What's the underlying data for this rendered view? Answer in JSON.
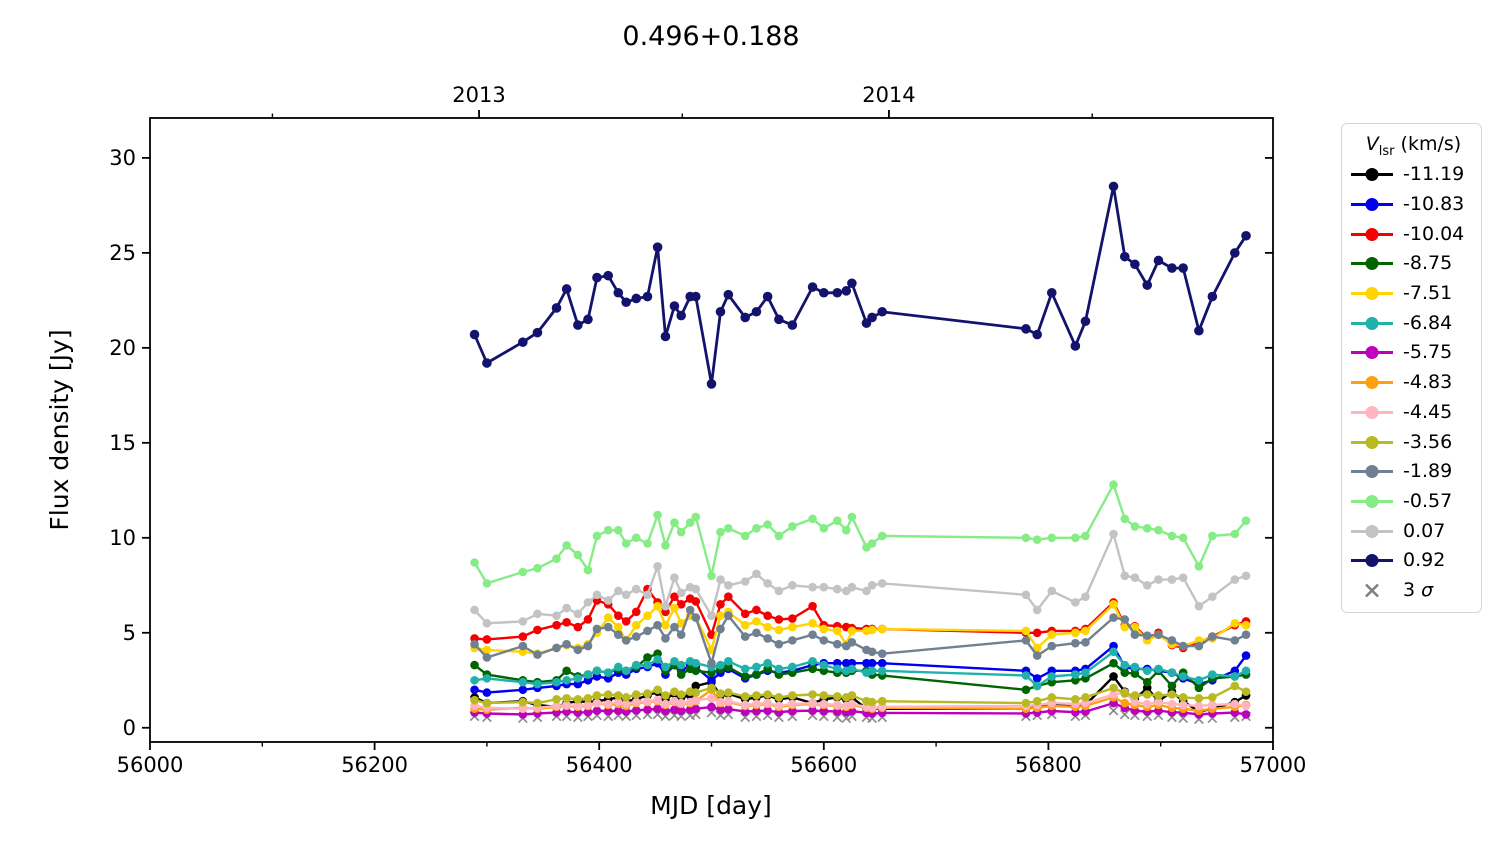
{
  "chart_data": {
    "type": "line",
    "title": "0.496+0.188",
    "xlabel": "MJD [day]",
    "ylabel": "Flux density [Jy]",
    "grid": false,
    "xlim": [
      56000,
      57000
    ],
    "ylim": [
      -0.75,
      32.1
    ],
    "x_major_ticks": [
      56000,
      56200,
      56400,
      56600,
      56800,
      57000
    ],
    "x_minor_ticks": [
      56100,
      56300,
      56500,
      56700,
      56900
    ],
    "y_major_ticks": [
      0,
      5,
      10,
      15,
      20,
      25,
      30
    ],
    "top_axis": {
      "major_ticks": [
        {
          "mjd": 56293,
          "label": "2013"
        },
        {
          "mjd": 56658,
          "label": "2014"
        }
      ],
      "minor_ticks": [
        56109,
        56474,
        56839
      ]
    },
    "legend": {
      "position": "outside-right-top",
      "title_variable": "V",
      "title_subscript": "lsr",
      "title_unit": "(km/s)",
      "sigma_prefix": "3 ",
      "sigma_symbol": "σ"
    },
    "x": [
      56289,
      56300,
      56332,
      56345,
      56362,
      56371,
      56381,
      56390,
      56398,
      56408,
      56417,
      56424,
      56433,
      56443,
      56452,
      56459,
      56467,
      56473,
      56481,
      56486,
      56500,
      56508,
      56515,
      56530,
      56540,
      56550,
      56560,
      56572,
      56590,
      56600,
      56612,
      56620,
      56625,
      56638,
      56643,
      56652,
      56780,
      56790,
      56803,
      56824,
      56833,
      56858,
      56868,
      56877,
      56888,
      56898,
      56910,
      56920,
      56934,
      56946,
      56966,
      56976
    ],
    "series": [
      {
        "name": "-11.19",
        "color": "#000000",
        "values": [
          1.6,
          1.3,
          1.4,
          1.2,
          1.1,
          1.3,
          1.4,
          1.35,
          1.4,
          1.5,
          1.6,
          1.4,
          1.5,
          1.7,
          1.9,
          1.5,
          1.8,
          1.6,
          1.7,
          2.2,
          2.4,
          1.7,
          1.8,
          1.5,
          1.6,
          1.7,
          1.5,
          1.6,
          1.3,
          1.5,
          1.6,
          1.5,
          1.6,
          1.0,
          1.0,
          1.0,
          1.0,
          1.1,
          1.3,
          1.1,
          1.2,
          2.7,
          1.9,
          1.5,
          2.1,
          1.4,
          1.9,
          1.4,
          0.85,
          1.0,
          1.35,
          1.7
        ]
      },
      {
        "name": "-10.83",
        "color": "#0000ee",
        "values": [
          2.0,
          1.85,
          2.0,
          2.1,
          2.2,
          2.3,
          2.3,
          2.5,
          2.7,
          2.6,
          2.9,
          2.8,
          3.1,
          3.2,
          3.4,
          2.8,
          3.3,
          3.0,
          3.3,
          3.2,
          2.5,
          2.9,
          3.1,
          2.6,
          2.8,
          3.0,
          2.9,
          3.0,
          3.3,
          3.4,
          3.4,
          3.4,
          3.4,
          3.4,
          3.4,
          3.4,
          3.0,
          2.6,
          3.0,
          3.0,
          3.1,
          4.3,
          3.2,
          3.1,
          3.1,
          3.0,
          2.9,
          2.6,
          2.3,
          2.5,
          3.0,
          3.8
        ]
      },
      {
        "name": "-10.04",
        "color": "#f40000",
        "values": [
          4.7,
          4.65,
          4.8,
          5.15,
          5.4,
          5.55,
          5.3,
          5.7,
          6.7,
          6.5,
          5.9,
          5.6,
          6.1,
          7.3,
          6.6,
          6.1,
          6.9,
          6.5,
          6.8,
          6.65,
          4.9,
          6.5,
          6.9,
          6.0,
          6.2,
          5.9,
          5.7,
          5.75,
          6.4,
          5.4,
          5.35,
          5.3,
          5.25,
          5.2,
          5.2,
          5.2,
          5.0,
          5.0,
          5.1,
          5.1,
          5.2,
          6.6,
          5.4,
          5.35,
          4.7,
          5.0,
          4.35,
          4.2,
          4.5,
          4.8,
          5.4,
          5.6
        ]
      },
      {
        "name": "-8.75",
        "color": "#006400",
        "values": [
          3.3,
          2.8,
          2.5,
          2.4,
          2.5,
          3.0,
          2.7,
          2.8,
          3.0,
          2.9,
          3.1,
          3.0,
          3.2,
          3.7,
          3.9,
          3.0,
          3.3,
          2.8,
          3.1,
          3.0,
          2.9,
          3.1,
          3.2,
          2.7,
          2.8,
          3.1,
          2.8,
          2.9,
          3.1,
          3.0,
          2.9,
          2.9,
          3.0,
          3.0,
          2.8,
          2.75,
          2.0,
          2.2,
          2.4,
          2.5,
          2.6,
          3.4,
          2.9,
          2.85,
          2.4,
          3.0,
          2.2,
          2.9,
          2.1,
          2.6,
          2.7,
          2.8
        ]
      },
      {
        "name": "-7.51",
        "color": "#ffd400",
        "values": [
          4.2,
          4.1,
          4.0,
          3.9,
          4.2,
          4.35,
          4.2,
          4.4,
          5.0,
          5.8,
          5.3,
          4.6,
          5.4,
          5.9,
          6.4,
          5.4,
          6.3,
          5.5,
          5.9,
          5.8,
          4.1,
          5.9,
          6.1,
          5.4,
          5.6,
          5.3,
          5.15,
          5.3,
          5.5,
          5.2,
          5.1,
          4.4,
          5.1,
          5.1,
          5.15,
          5.2,
          5.1,
          4.2,
          4.9,
          5.0,
          5.1,
          6.5,
          5.3,
          5.3,
          4.6,
          4.9,
          4.4,
          4.3,
          4.6,
          4.7,
          5.5,
          5.4
        ]
      },
      {
        "name": "-6.84",
        "color": "#20b2aa",
        "values": [
          2.5,
          2.6,
          2.4,
          2.3,
          2.4,
          2.5,
          2.6,
          2.8,
          3.0,
          2.9,
          3.2,
          3.0,
          3.3,
          3.3,
          3.6,
          3.2,
          3.5,
          3.3,
          3.5,
          3.4,
          3.2,
          3.3,
          3.5,
          3.1,
          3.2,
          3.4,
          3.1,
          3.2,
          3.5,
          3.3,
          3.1,
          3.0,
          3.1,
          2.9,
          3.0,
          3.0,
          2.75,
          2.2,
          2.7,
          2.8,
          2.9,
          4.0,
          3.3,
          3.2,
          3.0,
          3.1,
          2.9,
          2.7,
          2.5,
          2.8,
          2.7,
          3.0
        ]
      },
      {
        "name": "-5.75",
        "color": "#bc00bc",
        "values": [
          0.8,
          0.75,
          0.7,
          0.75,
          0.8,
          0.85,
          0.8,
          0.82,
          0.9,
          0.88,
          0.9,
          0.85,
          0.92,
          0.95,
          1.0,
          0.88,
          0.95,
          0.9,
          0.95,
          1.0,
          1.1,
          0.95,
          0.98,
          0.85,
          0.88,
          0.9,
          0.82,
          0.88,
          0.9,
          0.88,
          0.85,
          0.82,
          0.88,
          0.78,
          0.75,
          0.78,
          0.75,
          0.8,
          0.88,
          0.82,
          0.85,
          1.3,
          1.05,
          0.9,
          0.85,
          0.9,
          0.82,
          0.8,
          0.7,
          0.75,
          0.8,
          0.7
        ]
      },
      {
        "name": "-4.83",
        "color": "#ff9f0e",
        "values": [
          1.0,
          0.95,
          1.05,
          1.0,
          1.1,
          1.15,
          1.1,
          1.15,
          1.3,
          1.2,
          1.25,
          1.15,
          1.3,
          1.35,
          1.4,
          1.2,
          1.35,
          1.25,
          1.3,
          1.4,
          2.0,
          1.3,
          1.35,
          1.15,
          1.2,
          1.25,
          1.1,
          1.2,
          1.25,
          1.2,
          1.15,
          1.1,
          1.2,
          1.05,
          1.0,
          1.05,
          1.0,
          1.05,
          1.15,
          1.1,
          1.15,
          1.6,
          1.3,
          1.2,
          1.1,
          1.2,
          1.05,
          1.0,
          0.9,
          1.0,
          1.1,
          1.2
        ]
      },
      {
        "name": "-4.45",
        "color": "#ffb4c0",
        "values": [
          1.15,
          1.05,
          1.0,
          1.05,
          1.15,
          1.2,
          1.15,
          1.2,
          1.3,
          1.25,
          1.35,
          1.25,
          1.35,
          1.4,
          1.45,
          1.25,
          1.4,
          1.3,
          1.35,
          1.45,
          1.55,
          1.35,
          1.4,
          1.2,
          1.25,
          1.3,
          1.15,
          1.25,
          1.3,
          1.25,
          1.2,
          1.15,
          1.25,
          1.1,
          1.05,
          1.1,
          1.15,
          1.2,
          1.3,
          1.25,
          1.3,
          1.75,
          1.85,
          1.35,
          1.25,
          1.35,
          1.25,
          1.2,
          1.15,
          1.2,
          1.25,
          1.15
        ]
      },
      {
        "name": "-3.56",
        "color": "#b9b921",
        "values": [
          1.45,
          1.3,
          1.35,
          1.3,
          1.5,
          1.55,
          1.5,
          1.55,
          1.7,
          1.75,
          1.7,
          1.6,
          1.75,
          1.8,
          2.0,
          1.7,
          1.9,
          1.75,
          1.9,
          1.85,
          2.1,
          1.8,
          1.85,
          1.65,
          1.7,
          1.75,
          1.6,
          1.7,
          1.75,
          1.7,
          1.65,
          1.6,
          1.7,
          1.4,
          1.35,
          1.4,
          1.3,
          1.4,
          1.6,
          1.5,
          1.6,
          2.1,
          1.8,
          1.7,
          1.75,
          1.7,
          1.75,
          1.6,
          1.55,
          1.6,
          2.2,
          1.9
        ]
      },
      {
        "name": "-1.89",
        "color": "#708090",
        "values": [
          4.4,
          3.7,
          4.3,
          3.85,
          4.2,
          4.4,
          4.1,
          4.3,
          5.2,
          5.3,
          4.9,
          4.6,
          4.8,
          5.1,
          5.4,
          4.7,
          5.3,
          4.9,
          6.2,
          5.8,
          3.4,
          5.2,
          5.9,
          4.8,
          5.0,
          4.7,
          4.4,
          4.6,
          4.9,
          4.6,
          4.4,
          4.3,
          4.5,
          4.1,
          4.0,
          3.9,
          4.6,
          3.8,
          4.3,
          4.45,
          4.5,
          5.8,
          5.7,
          4.9,
          4.85,
          4.9,
          4.6,
          4.3,
          4.3,
          4.8,
          4.6,
          4.9
        ]
      },
      {
        "name": "-0.57",
        "color": "#86ec86",
        "values": [
          8.7,
          7.6,
          8.2,
          8.4,
          8.9,
          9.6,
          9.1,
          8.3,
          10.1,
          10.4,
          10.4,
          9.7,
          10.0,
          9.7,
          11.2,
          9.6,
          10.8,
          10.3,
          10.8,
          11.1,
          8.0,
          10.3,
          10.5,
          10.1,
          10.5,
          10.7,
          10.1,
          10.6,
          11.0,
          10.5,
          10.9,
          10.4,
          11.1,
          9.5,
          9.7,
          10.1,
          10.0,
          9.9,
          10.0,
          10.0,
          10.1,
          12.8,
          11.0,
          10.6,
          10.5,
          10.4,
          10.1,
          10.0,
          8.5,
          10.1,
          10.2,
          10.9
        ]
      },
      {
        "name": "0.07",
        "color": "#c3c3c3",
        "values": [
          6.2,
          5.5,
          5.6,
          6.0,
          5.9,
          6.3,
          6.0,
          6.6,
          7.0,
          6.7,
          7.2,
          7.0,
          7.3,
          7.0,
          8.5,
          6.4,
          7.9,
          7.1,
          7.4,
          7.3,
          5.9,
          7.8,
          7.5,
          7.7,
          8.1,
          7.6,
          7.2,
          7.5,
          7.4,
          7.4,
          7.3,
          7.2,
          7.4,
          7.2,
          7.5,
          7.6,
          7.0,
          6.2,
          7.2,
          6.6,
          6.9,
          10.2,
          8.0,
          7.9,
          7.5,
          7.8,
          7.8,
          7.9,
          6.4,
          6.9,
          7.8,
          8.0
        ]
      },
      {
        "name": "0.92",
        "color": "#13136e",
        "values": [
          20.7,
          19.2,
          20.3,
          20.8,
          22.1,
          23.1,
          21.2,
          21.5,
          23.7,
          23.8,
          22.9,
          22.4,
          22.6,
          22.7,
          25.3,
          20.6,
          22.2,
          21.7,
          22.7,
          22.7,
          18.1,
          21.9,
          22.8,
          21.6,
          21.9,
          22.7,
          21.5,
          21.2,
          23.2,
          22.9,
          22.9,
          23.0,
          23.4,
          21.3,
          21.6,
          21.9,
          21.0,
          20.7,
          22.9,
          20.1,
          21.4,
          28.5,
          24.8,
          24.4,
          23.3,
          24.6,
          24.2,
          24.2,
          20.9,
          22.7,
          25.0,
          25.9
        ]
      }
    ],
    "sigma": {
      "name": "3 σ",
      "color": "#808080",
      "marker": "x",
      "values": [
        0.6,
        0.55,
        0.5,
        0.55,
        0.6,
        0.6,
        0.55,
        0.6,
        0.65,
        0.6,
        0.65,
        0.6,
        0.65,
        0.7,
        0.7,
        0.6,
        0.65,
        0.6,
        0.65,
        0.7,
        0.8,
        0.65,
        0.7,
        0.55,
        0.6,
        0.65,
        0.55,
        0.6,
        0.65,
        0.6,
        0.55,
        0.5,
        0.6,
        0.55,
        0.5,
        0.55,
        0.6,
        0.65,
        0.7,
        0.6,
        0.65,
        0.9,
        0.7,
        0.65,
        0.6,
        0.65,
        0.55,
        0.5,
        0.45,
        0.5,
        0.55,
        0.6
      ]
    }
  }
}
